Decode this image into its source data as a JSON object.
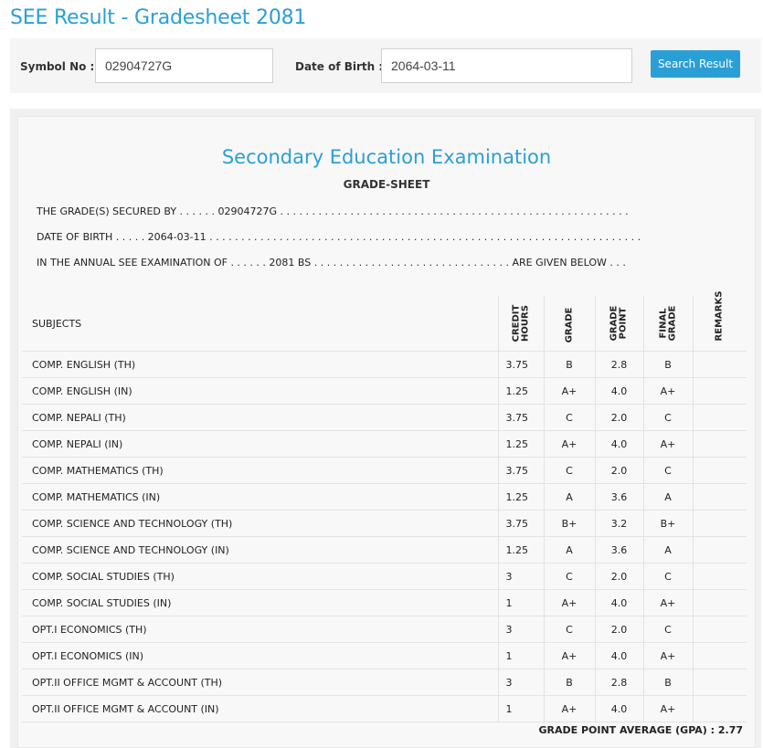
{
  "page": {
    "title": "SEE Result - Gradesheet 2081"
  },
  "search": {
    "symbol_label": "Symbol No :",
    "symbol_value": "02904727G",
    "dob_label": "Date of Birth :",
    "dob_value": "2064-03-11",
    "button_label": "Search Result"
  },
  "colors": {
    "accent": "#2a9fd6",
    "panel_bg": "#f5f5f5"
  },
  "sheet": {
    "exam_title": "Secondary Education Examination",
    "subtitle": "GRADE-SHEET",
    "line1": "THE GRADE(S) SECURED BY . . . . . . 02904727G . . . . . . . . . . . . . . . . . . . . . . . . . . . . . . . . . . . . . . . . . . . . . . . . . . . . . . .",
    "line2": "DATE OF BIRTH . . . . . 2064-03-11 . . . . . . . . . . . . . . . . . . . . . . . . . . . . . . . . . . . . . . . . . . . . . . . . . . . . . . . . . . . . . . . . . . . .",
    "line3": "IN THE ANNUAL SEE EXAMINATION OF . . . . . . 2081 BS . . . . . . . . . . . . . . . . . . . . . . . . . . . . . . . ARE GIVEN BELOW . . .",
    "headers": {
      "subjects": "SUBJECTS",
      "credit_1": "CREDIT",
      "credit_2": "HOURS",
      "grade": "GRADE",
      "gp_1": "GRADE",
      "gp_2": "POINT",
      "final_1": "FINAL",
      "final_2": "GRADE",
      "remarks": "REMARKS"
    },
    "rows": [
      {
        "subject": "COMP. ENGLISH (TH)",
        "credit": "3.75",
        "grade": "B",
        "point": "2.8",
        "final": "B"
      },
      {
        "subject": "COMP. ENGLISH (IN)",
        "credit": "1.25",
        "grade": "A+",
        "point": "4.0",
        "final": "A+"
      },
      {
        "subject": "COMP. NEPALI (TH)",
        "credit": "3.75",
        "grade": "C",
        "point": "2.0",
        "final": "C"
      },
      {
        "subject": "COMP. NEPALI (IN)",
        "credit": "1.25",
        "grade": "A+",
        "point": "4.0",
        "final": "A+"
      },
      {
        "subject": "COMP. MATHEMATICS (TH)",
        "credit": "3.75",
        "grade": "C",
        "point": "2.0",
        "final": "C"
      },
      {
        "subject": "COMP. MATHEMATICS (IN)",
        "credit": "1.25",
        "grade": "A",
        "point": "3.6",
        "final": "A"
      },
      {
        "subject": "COMP. SCIENCE AND TECHNOLOGY (TH)",
        "credit": "3.75",
        "grade": "B+",
        "point": "3.2",
        "final": "B+"
      },
      {
        "subject": "COMP. SCIENCE AND TECHNOLOGY (IN)",
        "credit": "1.25",
        "grade": "A",
        "point": "3.6",
        "final": "A"
      },
      {
        "subject": "COMP. SOCIAL STUDIES (TH)",
        "credit": "3",
        "grade": "C",
        "point": "2.0",
        "final": "C"
      },
      {
        "subject": "COMP. SOCIAL STUDIES (IN)",
        "credit": "1",
        "grade": "A+",
        "point": "4.0",
        "final": "A+"
      },
      {
        "subject": "OPT.I ECONOMICS (TH)",
        "credit": "3",
        "grade": "C",
        "point": "2.0",
        "final": "C"
      },
      {
        "subject": "OPT.I ECONOMICS (IN)",
        "credit": "1",
        "grade": "A+",
        "point": "4.0",
        "final": "A+"
      },
      {
        "subject": "OPT.II OFFICE MGMT & ACCOUNT (TH)",
        "credit": "3",
        "grade": "B",
        "point": "2.8",
        "final": "B"
      },
      {
        "subject": "OPT.II OFFICE MGMT & ACCOUNT (IN)",
        "credit": "1",
        "grade": "A+",
        "point": "4.0",
        "final": "A+"
      }
    ],
    "gpa_label": "GRADE POINT AVERAGE (GPA) : 2.77"
  }
}
